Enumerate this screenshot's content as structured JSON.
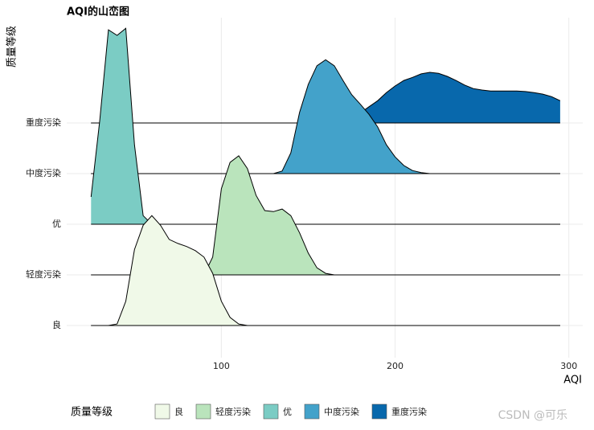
{
  "chart_data": {
    "type": "ridgeline",
    "title": "AQI的山峦图",
    "x_label": "AQI",
    "y_label": "质量等级",
    "legend_title": "质量等级",
    "watermark": "CSDN @可乐",
    "xlim": [
      11,
      308
    ],
    "xticks": [
      100,
      200,
      300
    ],
    "grid": true,
    "categories": [
      "良",
      "轻度污染",
      "优",
      "中度污染",
      "重度污染"
    ],
    "x": [
      25,
      30,
      35,
      40,
      45,
      50,
      55,
      60,
      65,
      70,
      75,
      80,
      85,
      90,
      95,
      100,
      105,
      110,
      115,
      120,
      125,
      130,
      135,
      140,
      145,
      150,
      155,
      160,
      165,
      170,
      175,
      180,
      185,
      190,
      195,
      200,
      205,
      210,
      215,
      220,
      225,
      230,
      235,
      240,
      245,
      250,
      255,
      260,
      265,
      270,
      275,
      280,
      285,
      290,
      295
    ],
    "series": [
      {
        "name": "良",
        "color": "#f0f9e8",
        "values": [
          0,
          0,
          0,
          0.03,
          0.48,
          1.5,
          1.98,
          2.17,
          1.98,
          1.7,
          1.62,
          1.56,
          1.48,
          1.35,
          1.03,
          0.48,
          0.16,
          0.03,
          0,
          0,
          0,
          0,
          0,
          0,
          0,
          0,
          0,
          0,
          0,
          0,
          0,
          0,
          0,
          0,
          0,
          0,
          0,
          0,
          0,
          0,
          0,
          0,
          0,
          0,
          0,
          0,
          0,
          0,
          0,
          0,
          0,
          0,
          0,
          0,
          0
        ]
      },
      {
        "name": "轻度污染",
        "color": "#bae4bc",
        "values": [
          0,
          0,
          0,
          0,
          0,
          0,
          0,
          0,
          0,
          0,
          0,
          0,
          0,
          0,
          0.35,
          1.7,
          2.22,
          2.35,
          2.1,
          1.57,
          1.27,
          1.25,
          1.3,
          1.17,
          0.83,
          0.43,
          0.14,
          0.03,
          0,
          0,
          0,
          0,
          0,
          0,
          0,
          0,
          0,
          0,
          0,
          0,
          0,
          0,
          0,
          0,
          0,
          0,
          0,
          0,
          0,
          0,
          0,
          0,
          0,
          0,
          0
        ]
      },
      {
        "name": "优",
        "color": "#7bccc4",
        "values": [
          0.54,
          2.05,
          3.84,
          3.73,
          3.87,
          1.57,
          0.17,
          0,
          0,
          0,
          0,
          0,
          0,
          0,
          0,
          0,
          0,
          0,
          0,
          0,
          0,
          0,
          0,
          0,
          0,
          0,
          0,
          0,
          0,
          0,
          0,
          0,
          0,
          0,
          0,
          0,
          0,
          0,
          0,
          0,
          0,
          0,
          0,
          0,
          0,
          0,
          0,
          0,
          0,
          0,
          0,
          0,
          0,
          0,
          0
        ]
      },
      {
        "name": "中度污染",
        "color": "#43a2ca",
        "values": [
          0,
          0,
          0,
          0,
          0,
          0,
          0,
          0,
          0,
          0,
          0,
          0,
          0,
          0,
          0,
          0,
          0,
          0,
          0,
          0,
          0,
          0,
          0.05,
          0.41,
          1.21,
          1.76,
          2.13,
          2.25,
          2.13,
          1.84,
          1.56,
          1.37,
          1.17,
          0.92,
          0.57,
          0.33,
          0.16,
          0.06,
          0.02,
          0,
          0,
          0,
          0,
          0,
          0,
          0,
          0,
          0,
          0,
          0,
          0,
          0,
          0,
          0,
          0
        ]
      },
      {
        "name": "重度污染",
        "color": "#0868ac",
        "values": [
          0,
          0,
          0,
          0,
          0,
          0,
          0,
          0,
          0,
          0,
          0,
          0,
          0,
          0,
          0,
          0,
          0,
          0,
          0,
          0,
          0,
          0,
          0,
          0,
          0,
          0,
          0,
          0,
          0.02,
          0.06,
          0.12,
          0.2,
          0.32,
          0.44,
          0.6,
          0.73,
          0.84,
          0.9,
          0.97,
          1.0,
          0.98,
          0.92,
          0.84,
          0.75,
          0.68,
          0.65,
          0.63,
          0.63,
          0.63,
          0.63,
          0.62,
          0.6,
          0.57,
          0.52,
          0.44
        ]
      }
    ]
  }
}
